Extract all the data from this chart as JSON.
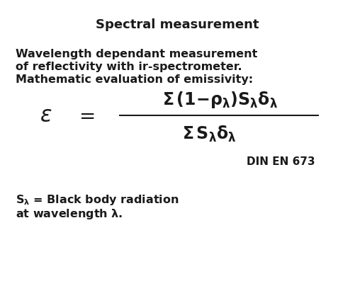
{
  "title": "Spectral measurement",
  "title_fontsize": 13,
  "body_text_line1": "Wavelength dependant measurement",
  "body_text_line2": "of reflectivity with ir-spectrometer.",
  "body_text_line3": "Mathematic evaluation of emissivity:",
  "body_fontsize": 11.5,
  "din_text": "DIN EN 673",
  "din_fontsize": 11,
  "background_color": "#ffffff",
  "text_color": "#1a1a1a",
  "fig_width": 5.01,
  "fig_height": 4.21,
  "dpi": 100
}
